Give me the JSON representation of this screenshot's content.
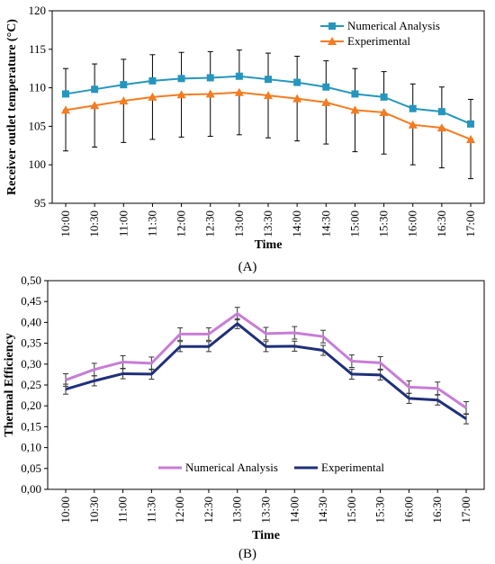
{
  "chart_data": [
    {
      "type": "line",
      "panel_label": "(A)",
      "xlabel": "Time",
      "ylabel": "Receiver outlet temperature  (°C)",
      "ylim": [
        95,
        120
      ],
      "yticks": [
        95,
        100,
        105,
        110,
        115,
        120
      ],
      "categories": [
        "10:00",
        "10:30",
        "11:00",
        "11:30",
        "12:00",
        "12:30",
        "13:00",
        "13:30",
        "14:00",
        "14:30",
        "15:00",
        "15:30",
        "16:00",
        "16:30",
        "17:00"
      ],
      "legend_position": "top-right",
      "grid": false,
      "series": [
        {
          "name": "Numerical Analysis",
          "color": "#2596be",
          "marker": "square",
          "values": [
            109.2,
            109.8,
            110.4,
            110.9,
            111.2,
            111.3,
            111.5,
            111.1,
            110.7,
            110.1,
            109.2,
            108.8,
            107.3,
            106.9,
            105.3
          ],
          "error_plus": [
            3.3,
            3.3,
            3.3,
            3.4,
            3.4,
            3.4,
            3.4,
            3.4,
            3.4,
            3.4,
            3.3,
            3.3,
            3.2,
            3.2,
            3.2
          ]
        },
        {
          "name": "Experimental",
          "color": "#f47c20",
          "marker": "triangle",
          "values": [
            107.1,
            107.7,
            108.3,
            108.8,
            109.1,
            109.2,
            109.4,
            109.0,
            108.6,
            108.1,
            107.1,
            106.8,
            105.2,
            104.8,
            103.3
          ],
          "error_minus": [
            5.3,
            5.4,
            5.4,
            5.5,
            5.5,
            5.5,
            5.5,
            5.5,
            5.5,
            5.4,
            5.4,
            5.4,
            5.2,
            5.2,
            5.1
          ]
        }
      ]
    },
    {
      "type": "line",
      "panel_label": "(B)",
      "xlabel": "Time",
      "ylabel": "Thermal Efficiency",
      "ylim": [
        0,
        0.5
      ],
      "yticks": [
        "0,00",
        "0,05",
        "0,10",
        "0,15",
        "0,20",
        "0,25",
        "0,30",
        "0,35",
        "0,40",
        "0,45",
        "0,50"
      ],
      "categories": [
        "10:00",
        "10:30",
        "11:00",
        "11:30",
        "12:00",
        "12:30",
        "13:00",
        "13:30",
        "14:00",
        "14:30",
        "15:00",
        "15:30",
        "16:00",
        "16:30",
        "17:00"
      ],
      "legend_position": "bottom-center",
      "grid": false,
      "series": [
        {
          "name": "Numerical Analysis",
          "color": "#c77dd6",
          "values": [
            0.262,
            0.287,
            0.305,
            0.302,
            0.372,
            0.372,
            0.421,
            0.373,
            0.375,
            0.366,
            0.307,
            0.303,
            0.245,
            0.242,
            0.195
          ],
          "error": [
            0.015,
            0.015,
            0.015,
            0.015,
            0.015,
            0.015,
            0.015,
            0.015,
            0.015,
            0.015,
            0.015,
            0.015,
            0.015,
            0.015,
            0.015
          ]
        },
        {
          "name": "Experimental",
          "color": "#1f2f7a",
          "values": [
            0.24,
            0.26,
            0.277,
            0.276,
            0.342,
            0.342,
            0.397,
            0.342,
            0.343,
            0.333,
            0.276,
            0.274,
            0.218,
            0.214,
            0.169
          ],
          "error": [
            0.012,
            0.012,
            0.012,
            0.012,
            0.012,
            0.012,
            0.012,
            0.012,
            0.012,
            0.012,
            0.012,
            0.012,
            0.012,
            0.012,
            0.012
          ]
        }
      ]
    }
  ]
}
